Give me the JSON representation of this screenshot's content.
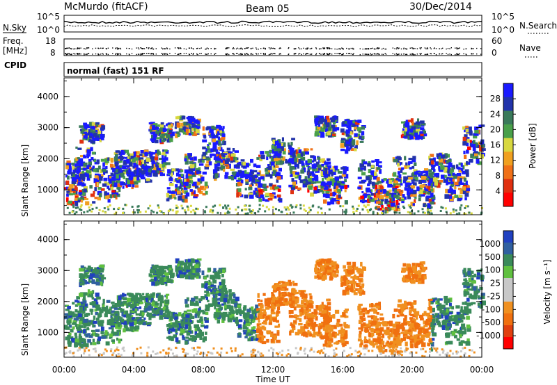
{
  "header": {
    "station": "McMurdo (fitACF)",
    "beam": "Beam 05",
    "date": "30/Dec/2014"
  },
  "summary": {
    "nsky_label": "N.Sky",
    "nsearch_label": "N.Search",
    "freq_label": "Freq.",
    "freq_unit": "[MHz]",
    "nave_label": "Nave",
    "cpid_label": "CPID",
    "cpid_value": "normal (fast) 151 RF",
    "noise_ticks": [
      "10^5",
      "10^0"
    ],
    "noise_ticks_right": [
      "10^5",
      "10^0"
    ],
    "freq_ticks": [
      "18",
      "8"
    ],
    "nave_ticks": [
      "60",
      "0"
    ]
  },
  "colors": {
    "power_scale": [
      "#1a1aff",
      "#2233aa",
      "#3a7a5a",
      "#4aa04a",
      "#d8d840",
      "#f0a020",
      "#f07018",
      "#e03010",
      "#ff0000"
    ],
    "velocity_scale": [
      "#2040c0",
      "#3060a0",
      "#3a8a5a",
      "#60c040",
      "#c8c8c8",
      "#c8c8c8",
      "#f09020",
      "#f07010",
      "#e04010",
      "#ff0000"
    ]
  },
  "chart_data": [
    {
      "type": "heatmap",
      "title": "Power",
      "xlabel": "Time UT",
      "ylabel": "Slant Range [km]",
      "x_ticks": [
        "00:00",
        "04:00",
        "08:00",
        "12:00",
        "16:00",
        "20:00",
        "00:00"
      ],
      "y_ticks": [
        "1000",
        "2000",
        "3000",
        "4000"
      ],
      "ylim": [
        200,
        4600
      ],
      "xlim_hours": [
        0,
        24
      ],
      "colorbar_label": "Power [dB]",
      "colorbar_ticks": [
        "4",
        "8",
        "12",
        "16",
        "20",
        "24",
        "28"
      ],
      "clim": [
        0,
        30
      ]
    },
    {
      "type": "heatmap",
      "title": "Velocity",
      "xlabel": "Time UT",
      "ylabel": "Slant Range [km]",
      "x_ticks": [
        "00:00",
        "04:00",
        "08:00",
        "12:00",
        "16:00",
        "20:00",
        "00:00"
      ],
      "y_ticks": [
        "1000",
        "2000",
        "3000",
        "4000"
      ],
      "ylim": [
        200,
        4600
      ],
      "xlim_hours": [
        0,
        24
      ],
      "colorbar_label": "Velocity [m s⁻¹]",
      "colorbar_ticks": [
        "1000",
        "500",
        "100",
        "25",
        "-25",
        "-100",
        "-500",
        "-1000"
      ]
    }
  ]
}
